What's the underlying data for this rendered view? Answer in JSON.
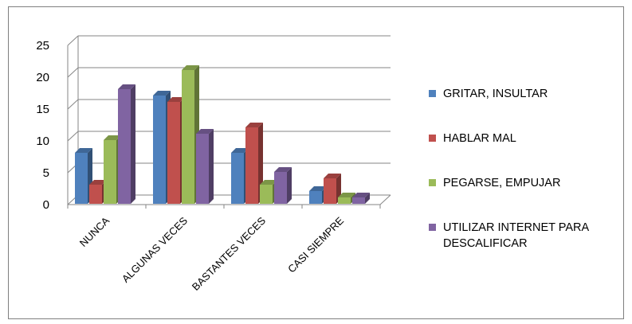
{
  "chart_data": {
    "type": "bar",
    "title": "",
    "xlabel": "",
    "ylabel": "",
    "ylim": [
      0,
      25
    ],
    "yticks": [
      0,
      5,
      10,
      15,
      20,
      25
    ],
    "grid": true,
    "legend_position": "right",
    "categories": [
      "NUNCA",
      "ALGUNAS VECES",
      "BASTANTES VECES",
      "CASI SIEMPRE"
    ],
    "series": [
      {
        "name": "GRITAR, INSULTAR",
        "values": [
          8,
          17,
          8,
          2
        ],
        "color": "#4f81bd"
      },
      {
        "name": "HABLAR MAL",
        "values": [
          3,
          16,
          12,
          4
        ],
        "color": "#c0504d"
      },
      {
        "name": "PEGARSE, EMPUJAR",
        "values": [
          10,
          21,
          3,
          1
        ],
        "color": "#9bbb59"
      },
      {
        "name_lines": [
          "UTILIZAR INTERNET PARA",
          "DESCALIFICAR"
        ],
        "values": [
          18,
          11,
          5,
          1
        ],
        "color": "#8064a2"
      }
    ]
  }
}
